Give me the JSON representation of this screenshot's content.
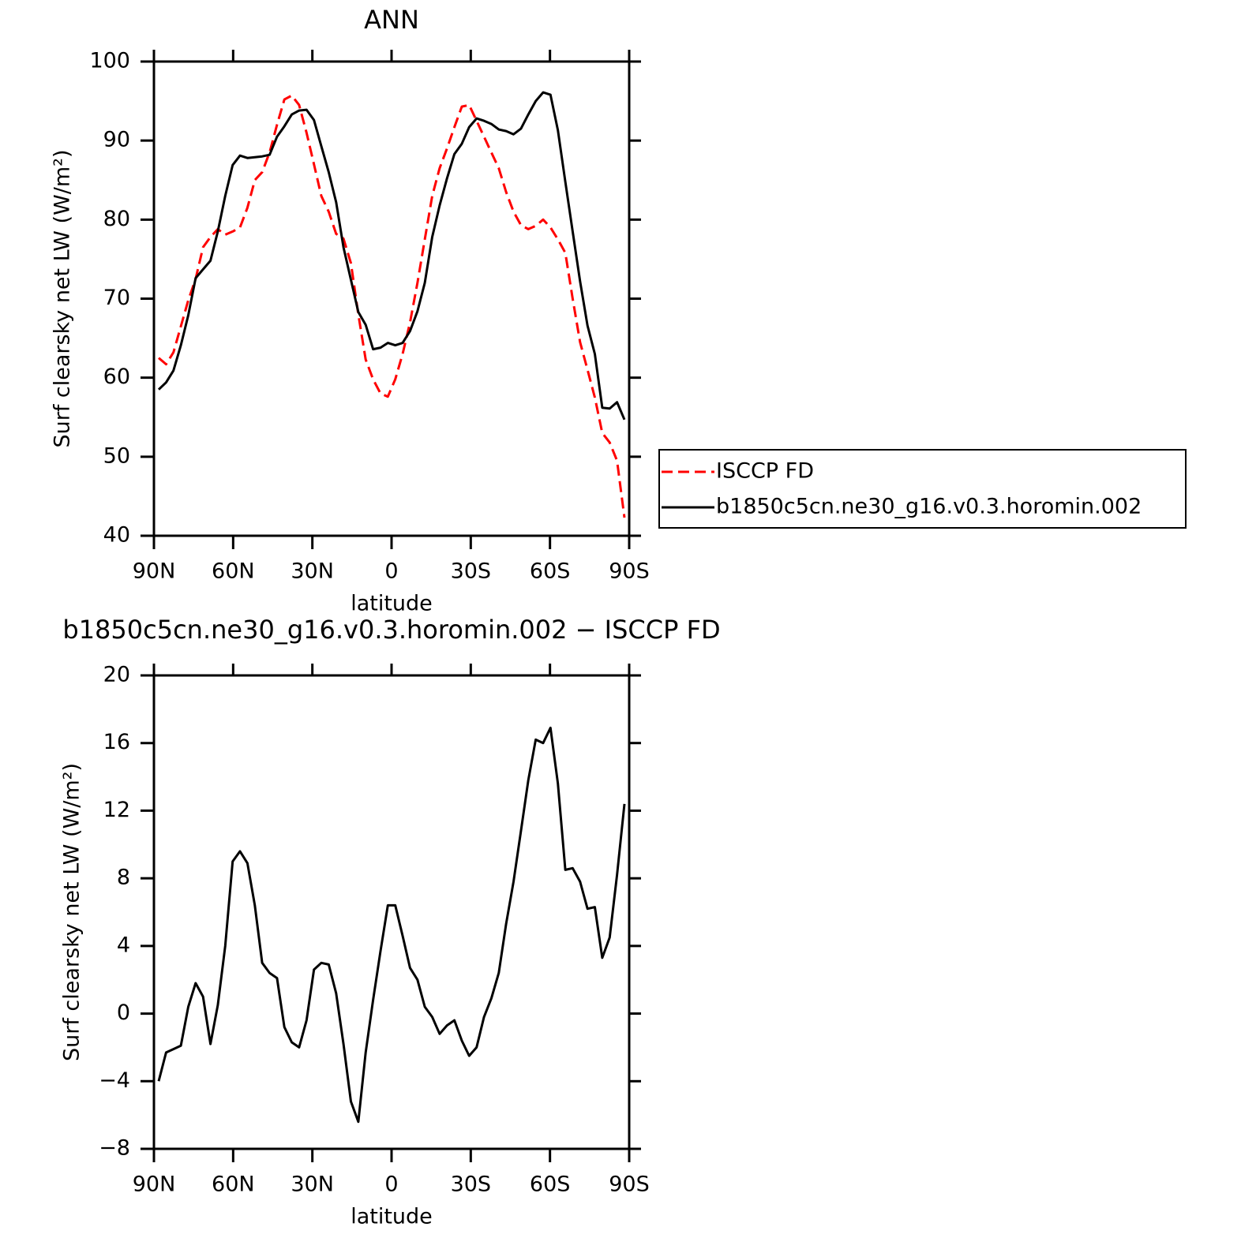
{
  "chart_data": [
    {
      "type": "line",
      "title": "ANN",
      "xlabel": "latitude",
      "ylabel": "Surf clearsky net LW (W/m²)",
      "x": [
        88.2,
        85.4,
        82.6,
        79.8,
        77.0,
        74.2,
        71.4,
        68.6,
        65.8,
        63.0,
        60.2,
        57.4,
        54.6,
        51.8,
        49.0,
        46.2,
        43.4,
        40.6,
        37.8,
        35.0,
        32.2,
        29.4,
        26.6,
        23.8,
        21.0,
        18.2,
        15.4,
        12.6,
        9.8,
        7.0,
        4.2,
        1.4,
        -1.4,
        -4.2,
        -7.0,
        -9.8,
        -12.6,
        -15.4,
        -18.2,
        -21.0,
        -23.8,
        -26.6,
        -29.4,
        -32.2,
        -35.0,
        -37.8,
        -40.6,
        -43.4,
        -46.2,
        -49.0,
        -51.8,
        -54.6,
        -57.4,
        -60.2,
        -63.0,
        -65.8,
        -68.6,
        -71.4,
        -74.2,
        -77.0,
        -79.8,
        -82.6,
        -85.4,
        -88.2
      ],
      "series": [
        {
          "name": "ISCCP FD",
          "color": "#ff0000",
          "line_style": "dashed",
          "values": [
            62.5,
            61.7,
            63.2,
            66.5,
            69.8,
            72.5,
            76.5,
            77.8,
            78.8,
            78.1,
            78.5,
            79.0,
            81.5,
            85.0,
            86.0,
            88.5,
            92.0,
            95.2,
            95.7,
            94.5,
            91.0,
            87.0,
            83.0,
            81.0,
            78.2,
            77.6,
            74.5,
            68.0,
            62.3,
            59.8,
            58.0,
            57.6,
            59.8,
            63.0,
            67.0,
            72.0,
            77.5,
            83.0,
            86.5,
            89.0,
            91.7,
            94.3,
            94.5,
            92.5,
            90.5,
            88.5,
            86.5,
            83.5,
            81.0,
            79.3,
            78.8,
            79.2,
            80.0,
            79.0,
            77.5,
            75.8,
            70.0,
            64.5,
            61.0,
            57.5,
            53.0,
            51.8,
            49.5,
            42.3
          ]
        },
        {
          "name": "b1850c5cn.ne30_g16.v0.3.horomin.002",
          "color": "#000000",
          "line_style": "solid",
          "values": [
            58.5,
            59.4,
            60.9,
            64.1,
            67.9,
            72.6,
            73.7,
            74.8,
            78.5,
            83.0,
            86.9,
            88.1,
            87.8,
            87.9,
            88.0,
            88.2,
            90.5,
            91.8,
            93.3,
            93.8,
            93.9,
            92.6,
            89.3,
            86.0,
            82.2,
            76.5,
            72.4,
            68.3,
            66.7,
            63.6,
            63.8,
            64.4,
            64.1,
            64.4,
            65.9,
            68.4,
            72.0,
            77.8,
            81.8,
            85.2,
            88.3,
            89.6,
            91.7,
            92.8,
            92.5,
            92.1,
            91.4,
            91.2,
            90.8,
            91.5,
            93.3,
            95.0,
            96.1,
            95.8,
            91.3,
            84.8,
            78.5,
            72.2,
            66.6,
            63.0,
            56.2,
            56.1,
            56.9,
            54.7
          ]
        }
      ],
      "xlim": [
        90,
        -90
      ],
      "xticks": [
        {
          "value": 90,
          "label": "90N"
        },
        {
          "value": 60,
          "label": "60N"
        },
        {
          "value": 30,
          "label": "30N"
        },
        0,
        {
          "value": -30,
          "label": "30S"
        },
        {
          "value": -60,
          "label": "60S"
        },
        {
          "value": -90,
          "label": "90S"
        }
      ],
      "ylim": [
        40,
        100
      ],
      "yticks": [
        40,
        50,
        60,
        70,
        80,
        90,
        100
      ],
      "legend": "right"
    },
    {
      "type": "line",
      "title": "b1850c5cn.ne30_g16.v0.3.horomin.002 − ISCCP FD",
      "xlabel": "latitude",
      "ylabel": "Surf clearsky net LW (W/m²)",
      "x": [
        88.2,
        85.4,
        82.6,
        79.8,
        77.0,
        74.2,
        71.4,
        68.6,
        65.8,
        63.0,
        60.2,
        57.4,
        54.6,
        51.8,
        49.0,
        46.2,
        43.4,
        40.6,
        37.8,
        35.0,
        32.2,
        29.4,
        26.6,
        23.8,
        21.0,
        18.2,
        15.4,
        12.6,
        9.8,
        7.0,
        4.2,
        1.4,
        -1.4,
        -4.2,
        -7.0,
        -9.8,
        -12.6,
        -15.4,
        -18.2,
        -21.0,
        -23.8,
        -26.6,
        -29.4,
        -32.2,
        -35.0,
        -37.8,
        -40.6,
        -43.4,
        -46.2,
        -49.0,
        -51.8,
        -54.6,
        -57.4,
        -60.2,
        -63.0,
        -65.8,
        -68.6,
        -71.4,
        -74.2,
        -77.0,
        -79.8,
        -82.6,
        -85.4,
        -88.2
      ],
      "series": [
        {
          "color": "#000000",
          "line_style": "solid",
          "values": [
            -4.0,
            -2.3,
            -2.1,
            -1.9,
            0.4,
            1.8,
            1.0,
            -1.8,
            0.5,
            4.0,
            9.0,
            9.6,
            8.9,
            6.4,
            3.0,
            2.4,
            2.1,
            -0.8,
            -1.7,
            -2.0,
            -0.4,
            2.6,
            3.0,
            2.9,
            1.2,
            -1.8,
            -5.2,
            -6.4,
            -2.3,
            0.8,
            3.7,
            6.4,
            6.4,
            4.6,
            2.7,
            2.0,
            0.4,
            -0.2,
            -1.2,
            -0.7,
            -0.4,
            -1.6,
            -2.5,
            -2.0,
            -0.2,
            0.9,
            2.4,
            5.3,
            7.8,
            10.8,
            13.8,
            16.2,
            16.0,
            16.9,
            13.6,
            8.5,
            8.6,
            7.8,
            6.2,
            6.3,
            3.3,
            4.5,
            8.2,
            12.4
          ]
        }
      ],
      "xlim": [
        90,
        -90
      ],
      "xticks": [
        {
          "value": 90,
          "label": "90N"
        },
        {
          "value": 60,
          "label": "60N"
        },
        {
          "value": 30,
          "label": "30N"
        },
        0,
        {
          "value": -30,
          "label": "30S"
        },
        {
          "value": -60,
          "label": "60S"
        },
        {
          "value": -90,
          "label": "90S"
        }
      ],
      "ylim": [
        -8,
        20
      ],
      "yticks": [
        {
          "value": -8,
          "label": "−8"
        },
        {
          "value": -4,
          "label": "−4"
        },
        0,
        4,
        8,
        12,
        16,
        20
      ]
    }
  ]
}
